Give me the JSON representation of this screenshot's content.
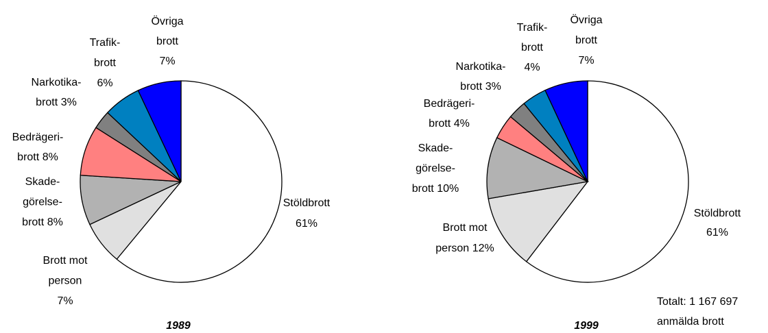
{
  "chart_data": [
    {
      "type": "pie",
      "title": "1989",
      "categories": [
        "Stöldbrott",
        "Brott mot\nperson",
        "Skade-\ngörelse-\nbrott",
        "Bedrägeri-\nbrott",
        "Narkotika-\nbrott",
        "Trafik-\nbrott",
        "Övriga\nbrott"
      ],
      "values": [
        61,
        7,
        8,
        8,
        3,
        6,
        7
      ],
      "value_labels": [
        "61%",
        "7%",
        "8%",
        "8%",
        "3%",
        "6%",
        "7%"
      ],
      "colors": [
        "#ffffff",
        "#e0e0e0",
        "#b2b2b2",
        "#ff8080",
        "#808080",
        "#0080c0",
        "#0000ff"
      ]
    },
    {
      "type": "pie",
      "title": "1999",
      "categories": [
        "Stöldbrott",
        "Brott mot\nperson",
        "Skade-\ngörelse-\nbrott",
        "Bedrägeri-\nbrott",
        "Narkotika-\nbrott",
        "Trafik-\nbrott",
        "Övriga\nbrott"
      ],
      "values": [
        61,
        12,
        10,
        4,
        3,
        4,
        7
      ],
      "value_labels": [
        "61%",
        "12%",
        "10%",
        "4%",
        "3%",
        "4%",
        "7%"
      ],
      "colors": [
        "#ffffff",
        "#e0e0e0",
        "#b2b2b2",
        "#ff8080",
        "#808080",
        "#0080c0",
        "#0000ff"
      ],
      "annotation": "Totalt: 1 167 697\nanmälda brott"
    }
  ]
}
